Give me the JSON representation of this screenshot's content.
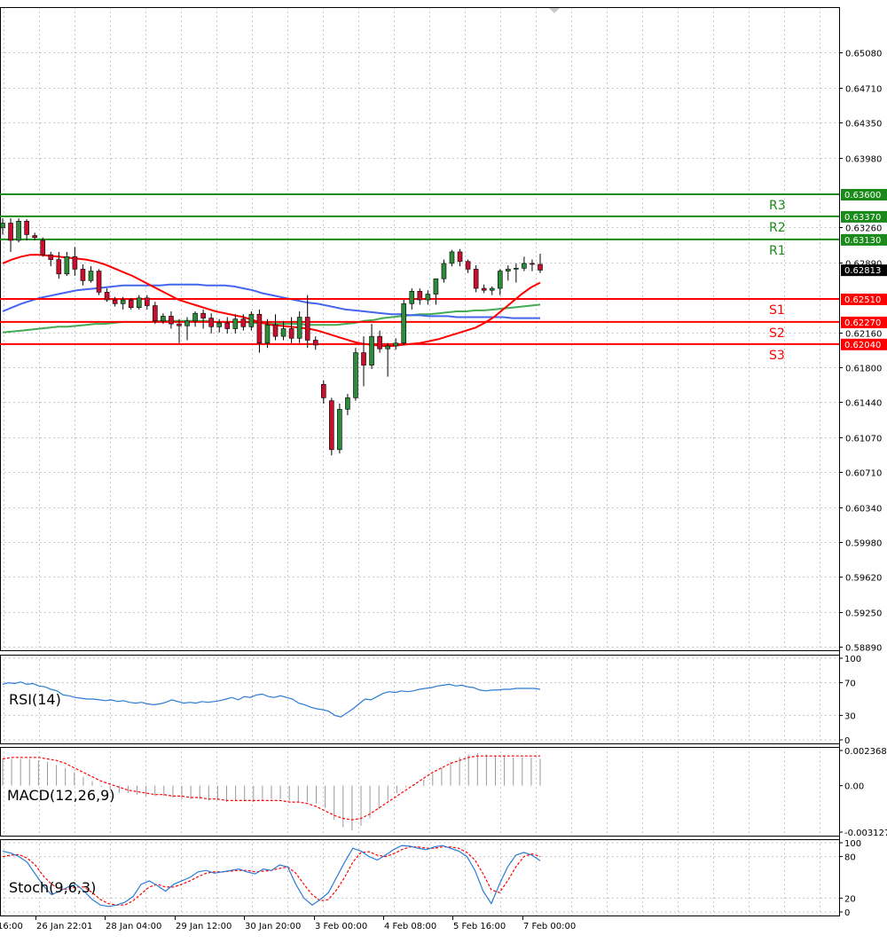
{
  "chart_data": {
    "type": "candlestick",
    "main": {
      "price_ticks": [
        0.6508,
        0.6471,
        0.6435,
        0.6398,
        0.6326,
        0.6289,
        0.6216,
        0.618,
        0.6144,
        0.6107,
        0.6071,
        0.6034,
        0.5998,
        0.5962,
        0.5925,
        0.5889
      ],
      "price_tick_labels": [
        "0.65080",
        "0.64710",
        "0.64350",
        "0.63980",
        "0.63260",
        "0.62890",
        "0.62160",
        "0.61800",
        "0.61440",
        "0.61070",
        "0.60710",
        "0.60340",
        "0.59980",
        "0.59620",
        "0.59250",
        "0.58890"
      ],
      "current_price": 0.62813,
      "current_price_label": "0.62813",
      "ylim": [
        0.5885,
        0.6555
      ],
      "levels": [
        {
          "name": "R3",
          "value": 0.636,
          "label": "0.63600",
          "color": "#1a8a1a"
        },
        {
          "name": "R2",
          "value": 0.6337,
          "label": "0.63370",
          "color": "#1a8a1a"
        },
        {
          "name": "R1",
          "value": 0.6313,
          "label": "0.63130",
          "color": "#1a8a1a"
        },
        {
          "name": "S1",
          "value": 0.6251,
          "label": "0.62510",
          "color": "#ff0000"
        },
        {
          "name": "S2",
          "value": 0.6227,
          "label": "0.62270",
          "color": "#ff0000"
        },
        {
          "name": "S3",
          "value": 0.6204,
          "label": "0.62040",
          "color": "#ff0000"
        }
      ],
      "candles": [
        [
          0.6325,
          0.6335,
          0.6318,
          0.633
        ],
        [
          0.633,
          0.6335,
          0.63,
          0.6312
        ],
        [
          0.6312,
          0.6335,
          0.631,
          0.6332
        ],
        [
          0.6332,
          0.6334,
          0.6312,
          0.6318
        ],
        [
          0.6317,
          0.632,
          0.6312,
          0.6315
        ],
        [
          0.6312,
          0.6315,
          0.6295,
          0.6297
        ],
        [
          0.6297,
          0.63,
          0.6285,
          0.6292
        ],
        [
          0.6292,
          0.63,
          0.6272,
          0.6277
        ],
        [
          0.6277,
          0.63,
          0.6275,
          0.6295
        ],
        [
          0.6295,
          0.6305,
          0.6275,
          0.6282
        ],
        [
          0.6282,
          0.6287,
          0.6265,
          0.627
        ],
        [
          0.627,
          0.6285,
          0.6268,
          0.628
        ],
        [
          0.628,
          0.6282,
          0.6255,
          0.6258
        ],
        [
          0.6258,
          0.6262,
          0.6248,
          0.625
        ],
        [
          0.625,
          0.6253,
          0.6243,
          0.6246
        ],
        [
          0.6246,
          0.6253,
          0.624,
          0.625
        ],
        [
          0.625,
          0.6252,
          0.624,
          0.6242
        ],
        [
          0.6242,
          0.6255,
          0.624,
          0.6252
        ],
        [
          0.6252,
          0.6255,
          0.624,
          0.6244
        ],
        [
          0.6244,
          0.6248,
          0.6225,
          0.6228
        ],
        [
          0.6228,
          0.6236,
          0.6225,
          0.6233
        ],
        [
          0.6233,
          0.6238,
          0.622,
          0.6225
        ],
        [
          0.6225,
          0.623,
          0.6205,
          0.6223
        ],
        [
          0.6223,
          0.6232,
          0.6208,
          0.6228
        ],
        [
          0.6228,
          0.6238,
          0.6222,
          0.6236
        ],
        [
          0.6236,
          0.624,
          0.622,
          0.6231
        ],
        [
          0.6231,
          0.6236,
          0.6215,
          0.6222
        ],
        [
          0.6222,
          0.623,
          0.6216,
          0.6226
        ],
        [
          0.6226,
          0.6232,
          0.6215,
          0.622
        ],
        [
          0.622,
          0.6235,
          0.6215,
          0.623
        ],
        [
          0.623,
          0.6235,
          0.6218,
          0.6222
        ],
        [
          0.6222,
          0.6238,
          0.6218,
          0.6235
        ],
        [
          0.6235,
          0.624,
          0.6195,
          0.6205
        ],
        [
          0.6205,
          0.623,
          0.62,
          0.6224
        ],
        [
          0.6224,
          0.6235,
          0.6208,
          0.6212
        ],
        [
          0.6212,
          0.6228,
          0.6208,
          0.622
        ],
        [
          0.622,
          0.6232,
          0.6205,
          0.621
        ],
        [
          0.621,
          0.6238,
          0.6205,
          0.6232
        ],
        [
          0.6232,
          0.6255,
          0.62,
          0.6208
        ],
        [
          0.6208,
          0.6212,
          0.6198,
          0.6203
        ],
        [
          0.6162,
          0.6166,
          0.6142,
          0.6148
        ],
        [
          0.6145,
          0.6148,
          0.6088,
          0.6094
        ],
        [
          0.6094,
          0.6142,
          0.609,
          0.6136
        ],
        [
          0.6136,
          0.6152,
          0.613,
          0.6148
        ],
        [
          0.6148,
          0.62,
          0.6145,
          0.6195
        ],
        [
          0.6195,
          0.6212,
          0.616,
          0.6182
        ],
        [
          0.6182,
          0.6225,
          0.6178,
          0.6212
        ],
        [
          0.6212,
          0.6218,
          0.6195,
          0.6199
        ],
        [
          0.6199,
          0.6205,
          0.617,
          0.6202
        ],
        [
          0.6202,
          0.621,
          0.6198,
          0.6205
        ],
        [
          0.6205,
          0.625,
          0.6203,
          0.6246
        ],
        [
          0.6246,
          0.6262,
          0.624,
          0.6259
        ],
        [
          0.6259,
          0.6262,
          0.6245,
          0.625
        ],
        [
          0.625,
          0.626,
          0.6245,
          0.6256
        ],
        [
          0.6256,
          0.6272,
          0.6245,
          0.6272
        ],
        [
          0.6272,
          0.6292,
          0.6268,
          0.6288
        ],
        [
          0.6288,
          0.6302,
          0.6285,
          0.63
        ],
        [
          0.63,
          0.6303,
          0.6285,
          0.629
        ],
        [
          0.629,
          0.6292,
          0.6278,
          0.6282
        ],
        [
          0.6282,
          0.6286,
          0.6258,
          0.6262
        ],
        [
          0.6262,
          0.6266,
          0.6257,
          0.626
        ],
        [
          0.626,
          0.6264,
          0.6255,
          0.6262
        ],
        [
          0.6262,
          0.6282,
          0.6255,
          0.628
        ],
        [
          0.628,
          0.6286,
          0.627,
          0.6282
        ],
        [
          0.6282,
          0.6288,
          0.6268,
          0.6283
        ],
        [
          0.6283,
          0.6295,
          0.628,
          0.6288
        ],
        [
          0.6288,
          0.6292,
          0.628,
          0.6287
        ],
        [
          0.6287,
          0.6298,
          0.6278,
          0.6281
        ]
      ],
      "ma_red": [
        0.6288,
        0.6292,
        0.6295,
        0.6297,
        0.6297,
        0.6296,
        0.6295,
        0.6294,
        0.6293,
        0.6292,
        0.629,
        0.6287,
        0.6283,
        0.6279,
        0.6275,
        0.627,
        0.6265,
        0.626,
        0.6255,
        0.625,
        0.6247,
        0.6244,
        0.6241,
        0.6238,
        0.6236,
        0.6234,
        0.6232,
        0.6229,
        0.6226,
        0.6224,
        0.6223,
        0.6222,
        0.6221,
        0.622,
        0.6218,
        0.6215,
        0.6212,
        0.6209,
        0.6206,
        0.6204,
        0.6203,
        0.6202,
        0.6202,
        0.6203,
        0.6204,
        0.6205,
        0.6207,
        0.6209,
        0.6212,
        0.6215,
        0.6218,
        0.6221,
        0.6226,
        0.6232,
        0.624,
        0.6248,
        0.6256,
        0.6263,
        0.6268
      ],
      "ma_blue": [
        0.6238,
        0.6242,
        0.6246,
        0.6249,
        0.6252,
        0.6254,
        0.6256,
        0.6258,
        0.626,
        0.6261,
        0.6262,
        0.6263,
        0.6264,
        0.6265,
        0.6265,
        0.6265,
        0.6265,
        0.6265,
        0.6266,
        0.6266,
        0.6266,
        0.6266,
        0.6265,
        0.6265,
        0.6265,
        0.6264,
        0.6262,
        0.626,
        0.6257,
        0.6255,
        0.6253,
        0.6251,
        0.6249,
        0.6247,
        0.6246,
        0.6244,
        0.6242,
        0.624,
        0.6239,
        0.6238,
        0.6237,
        0.6236,
        0.6235,
        0.6235,
        0.6234,
        0.6234,
        0.6233,
        0.6233,
        0.6233,
        0.6232,
        0.6232,
        0.6232,
        0.6232,
        0.6232,
        0.6232,
        0.6231,
        0.6231,
        0.6231,
        0.6231
      ],
      "ma_green": [
        0.6216,
        0.6217,
        0.6218,
        0.6219,
        0.622,
        0.6221,
        0.6222,
        0.6222,
        0.6223,
        0.6224,
        0.6225,
        0.6225,
        0.6226,
        0.6227,
        0.6227,
        0.6227,
        0.6227,
        0.6228,
        0.6228,
        0.6228,
        0.6228,
        0.6228,
        0.6228,
        0.6227,
        0.6227,
        0.6227,
        0.6227,
        0.6226,
        0.6226,
        0.6225,
        0.6225,
        0.6225,
        0.6225,
        0.6224,
        0.6224,
        0.6224,
        0.6224,
        0.6225,
        0.6226,
        0.6228,
        0.6229,
        0.6231,
        0.6232,
        0.6233,
        0.6234,
        0.6235,
        0.6235,
        0.6236,
        0.6237,
        0.6238,
        0.6238,
        0.6239,
        0.6239,
        0.624,
        0.6241,
        0.6242,
        0.6243,
        0.6244,
        0.6245
      ],
      "colors": {
        "bull": "#2e8b3a",
        "bear": "#c8102e",
        "ma_red": "#ff0000",
        "ma_blue": "#4466ee",
        "ma_green": "#44aa55"
      }
    },
    "rsi": {
      "label": "RSI(14)",
      "ticks": [
        100,
        70,
        30,
        0
      ],
      "tick_labels": [
        "100",
        "70",
        "30",
        "0"
      ],
      "ylim": [
        0,
        100
      ],
      "values": [
        68,
        70,
        69,
        71,
        68,
        69,
        66,
        65,
        62,
        60,
        55,
        54,
        52,
        51,
        50,
        50,
        49,
        48,
        49,
        47,
        48,
        46,
        45,
        46,
        44,
        43,
        44,
        46,
        49,
        47,
        45,
        46,
        45,
        47,
        46,
        47,
        48,
        50,
        52,
        49,
        53,
        52,
        55,
        56,
        53,
        52,
        54,
        52,
        50,
        45,
        43,
        40,
        38,
        37,
        35,
        30,
        28,
        33,
        38,
        44,
        50,
        49,
        53,
        57,
        59,
        58,
        60,
        59,
        60,
        62,
        63,
        64,
        66,
        67,
        68,
        66,
        67,
        65,
        64,
        61,
        60,
        61,
        61,
        62,
        62,
        63,
        63,
        63,
        63,
        62
      ],
      "color": "#2b7bd6"
    },
    "macd": {
      "label": "MACD(12,26,9)",
      "ticks": [
        0.002368,
        0,
        -0.003127
      ],
      "tick_labels": [
        "0.002368",
        "0.00",
        "-0.003127"
      ],
      "ylim": [
        -0.003127,
        0.002368
      ],
      "hist": [
        0.0018,
        0.0018,
        0.0018,
        0.0018,
        0.0017,
        0.0016,
        0.0014,
        0.0012,
        0.0009,
        0.0006,
        0.0003,
        -0.0001,
        -0.0003,
        -0.0005,
        -0.0005,
        -0.0006,
        -0.0007,
        -0.0007,
        -0.0007,
        -0.0008,
        -0.0009,
        -0.0009,
        -0.0009,
        -0.001,
        -0.001,
        -0.0011,
        -0.001,
        -0.001,
        -0.0011,
        -0.001,
        -0.0009,
        -0.0009,
        -0.001,
        -0.0011,
        -0.0011,
        -0.0012,
        -0.0015,
        -0.0023,
        -0.0028,
        -0.003,
        -0.0027,
        -0.0022,
        -0.0016,
        -0.001,
        -0.0005,
        -0.0001,
        0.0001,
        0.0004,
        0.0008,
        0.0012,
        0.0016,
        0.0019,
        0.0021,
        0.0022,
        0.0021,
        0.002,
        0.002,
        0.0019,
        0.0019,
        0.0019,
        0.0018
      ],
      "signal": [
        0.0018,
        0.0019,
        0.0019,
        0.0019,
        0.0019,
        0.0018,
        0.0017,
        0.0015,
        0.0012,
        0.0009,
        0.0006,
        0.0003,
        0.0001,
        -0.0001,
        -0.0003,
        -0.0004,
        -0.0005,
        -0.0006,
        -0.0006,
        -0.0007,
        -0.0007,
        -0.0008,
        -0.0008,
        -0.0009,
        -0.0009,
        -0.001,
        -0.001,
        -0.001,
        -0.001,
        -0.001,
        -0.001,
        -0.001,
        -0.0011,
        -0.0011,
        -0.0012,
        -0.0014,
        -0.0017,
        -0.002,
        -0.0022,
        -0.0023,
        -0.0022,
        -0.0019,
        -0.0015,
        -0.0011,
        -0.0007,
        -0.0003,
        0.0001,
        0.0005,
        0.0009,
        0.0012,
        0.0015,
        0.0017,
        0.0019,
        0.002,
        0.002,
        0.002,
        0.002,
        0.002,
        0.002,
        0.002,
        0.002
      ],
      "hist_color": "#9a9a9a",
      "signal_color": "#ff0000"
    },
    "stoch": {
      "label": "Stoch(9,6,3)",
      "ticks": [
        100,
        80,
        20,
        0
      ],
      "tick_labels": [
        "100",
        "80",
        "20",
        "0"
      ],
      "ylim": [
        0,
        100
      ],
      "main": [
        88,
        85,
        80,
        72,
        55,
        38,
        25,
        30,
        36,
        40,
        30,
        18,
        10,
        8,
        10,
        14,
        22,
        40,
        45,
        38,
        30,
        40,
        45,
        50,
        58,
        60,
        56,
        58,
        60,
        62,
        58,
        55,
        62,
        60,
        68,
        65,
        40,
        20,
        10,
        18,
        28,
        50,
        72,
        92,
        88,
        80,
        75,
        82,
        90,
        96,
        95,
        92,
        90,
        94,
        96,
        92,
        88,
        80,
        60,
        30,
        12,
        40,
        65,
        82,
        86,
        82,
        74
      ],
      "signal": [
        80,
        82,
        83,
        78,
        68,
        52,
        40,
        33,
        33,
        36,
        36,
        28,
        18,
        12,
        10,
        10,
        16,
        26,
        36,
        40,
        36,
        36,
        40,
        45,
        51,
        56,
        58,
        58,
        59,
        60,
        60,
        58,
        59,
        60,
        63,
        65,
        56,
        40,
        25,
        16,
        18,
        32,
        50,
        72,
        86,
        87,
        82,
        80,
        84,
        90,
        94,
        94,
        92,
        92,
        94,
        94,
        92,
        86,
        75,
        55,
        32,
        28,
        45,
        65,
        80,
        84,
        80
      ],
      "main_color": "#2b7bd6",
      "signal_color": "#ff0000"
    },
    "x_labels": [
      "16:00",
      "26 Jan 22:01",
      "28 Jan 04:00",
      "29 Jan 12:00",
      "30 Jan 20:00",
      "3 Feb 00:00",
      "4 Feb 08:00",
      "5 Feb 16:00",
      "7 Feb 00:00"
    ]
  }
}
